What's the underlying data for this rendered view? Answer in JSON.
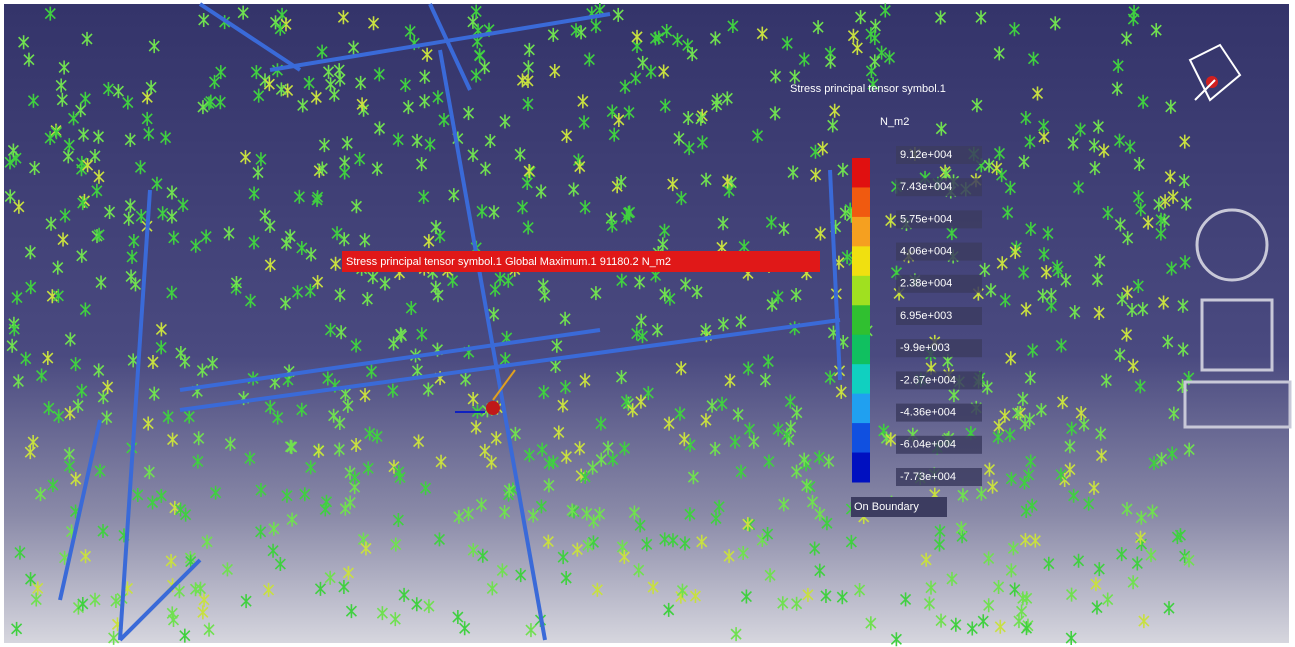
{
  "viewer": {
    "annotation": "Stress principal tensor symbol.1  Global Maximum.1  91180.2 N_m2",
    "legend": {
      "title": "Stress principal tensor symbol.1",
      "unit": "N_m2",
      "labels": [
        "9.12e+004",
        "7.43e+004",
        "5.75e+004",
        "4.06e+004",
        "2.38e+004",
        "6.95e+003",
        "-9.9e+003",
        "-2.67e+004",
        "-4.36e+004",
        "-6.04e+004",
        "-7.73e+004"
      ],
      "colors": [
        "#e01010",
        "#f05a10",
        "#f5a020",
        "#f0e010",
        "#a0e020",
        "#30c030",
        "#10c060",
        "#10d0c0",
        "#20a0f0",
        "#1050e0",
        "#0010c0"
      ],
      "footer": "On Boundary"
    }
  }
}
